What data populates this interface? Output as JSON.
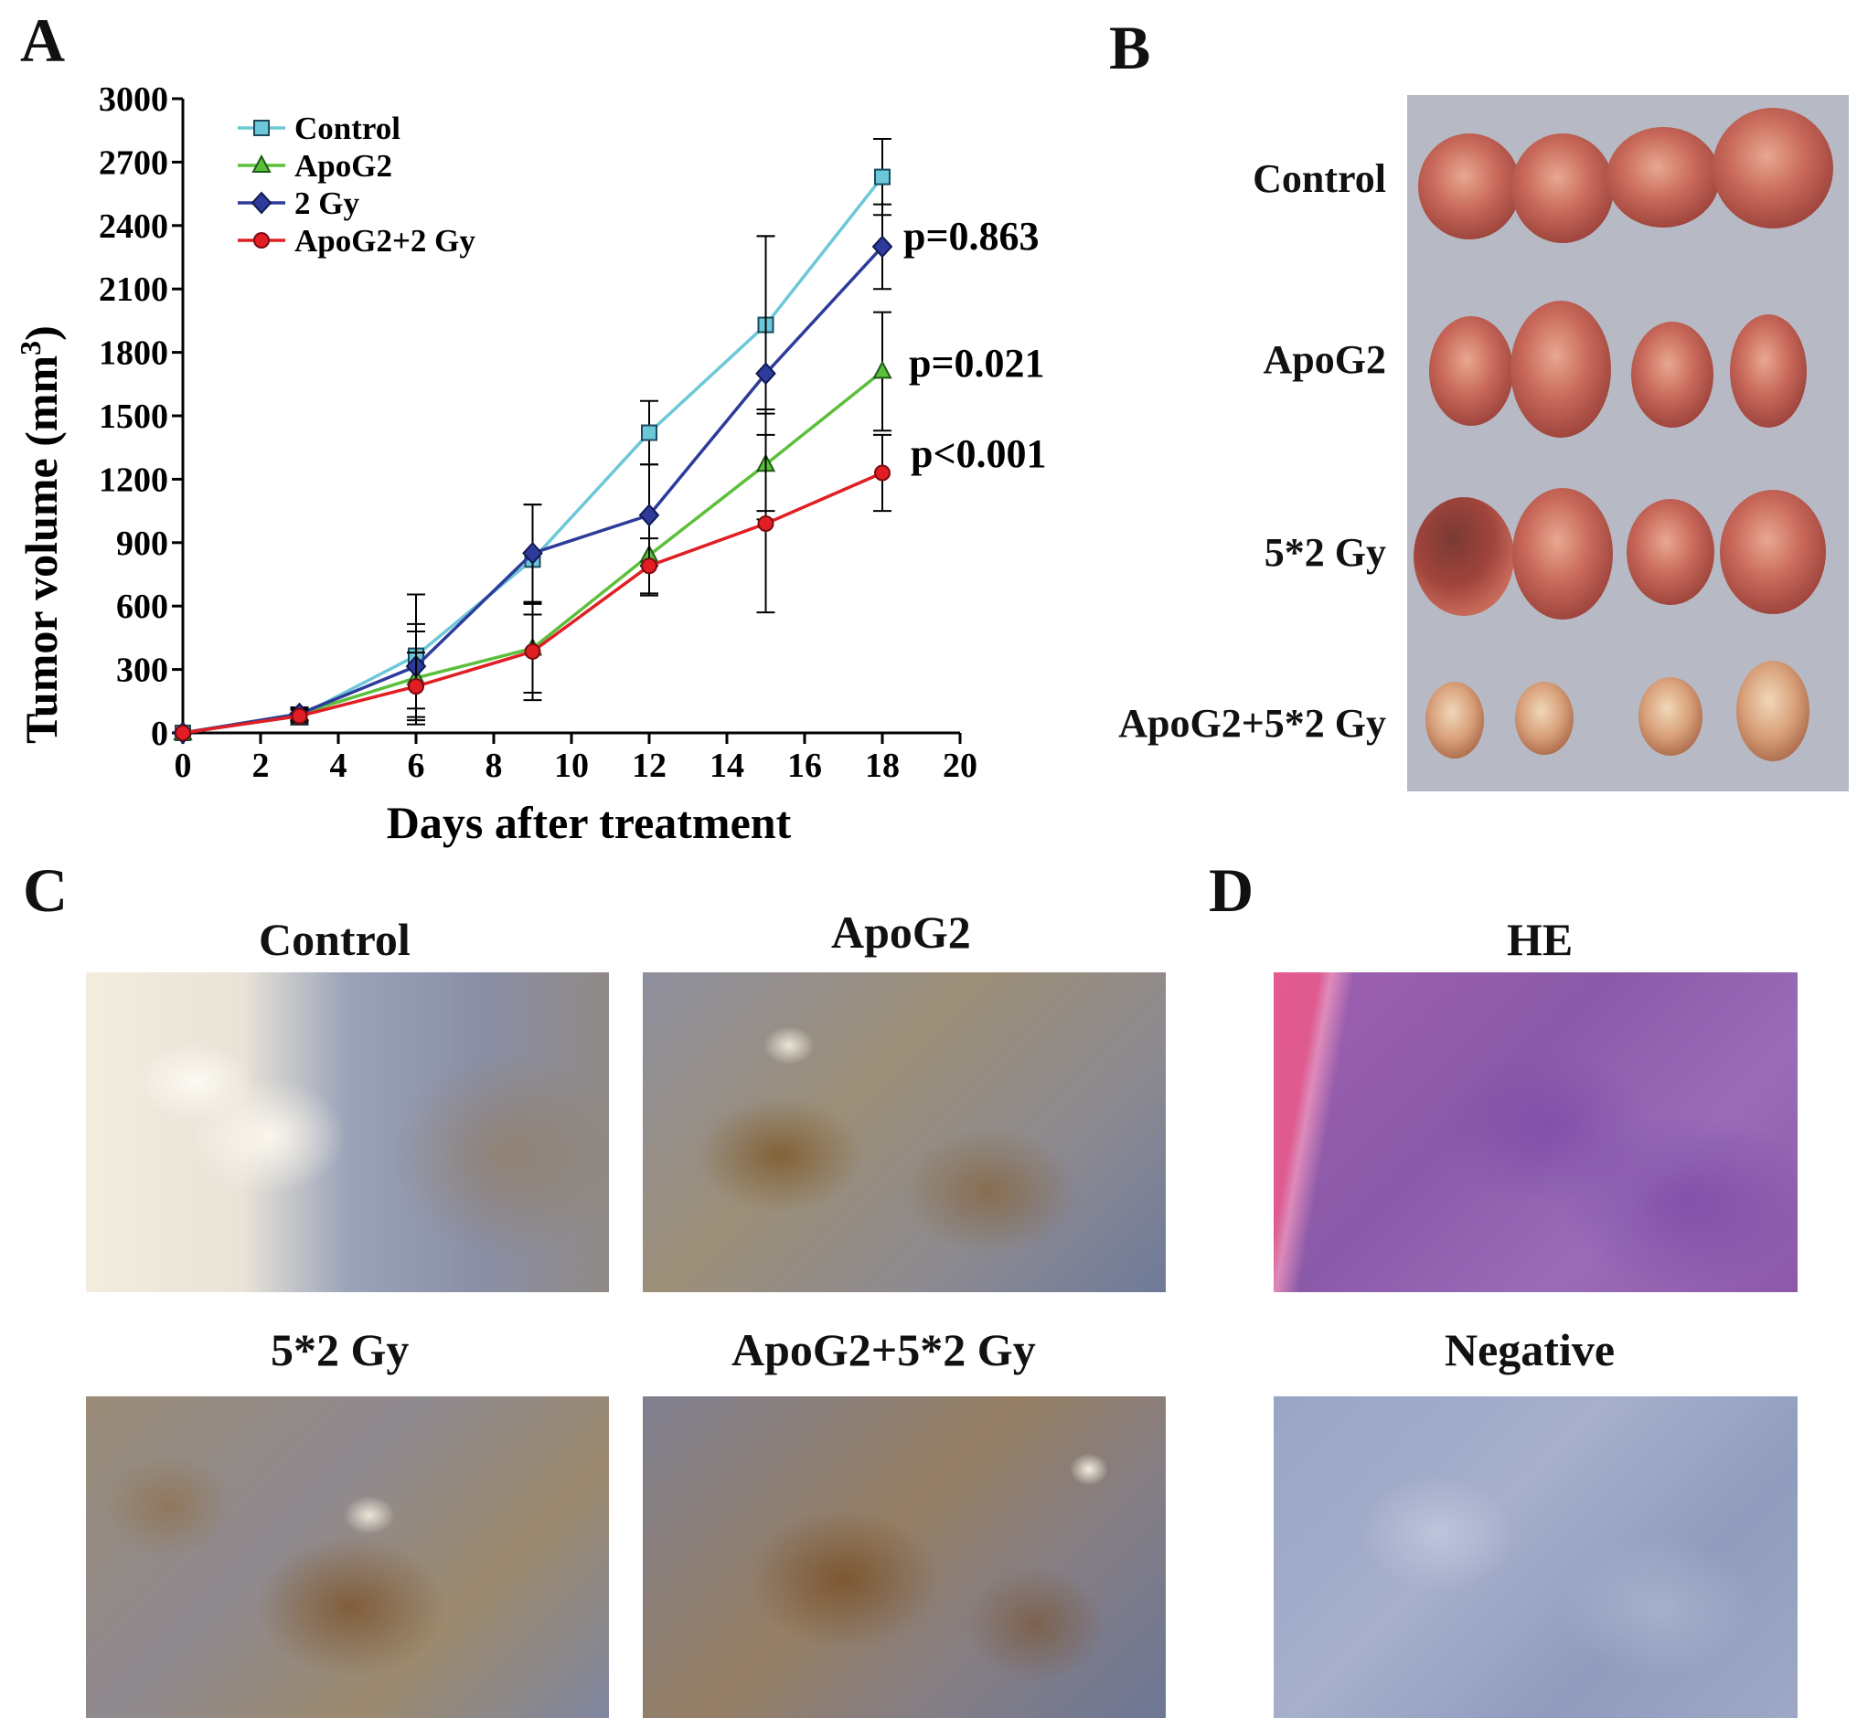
{
  "panels": {
    "a": {
      "letter": "A",
      "ylabel": "Tumor volume (mm",
      "ylabel_sup": "3",
      "ylabel_close": ")",
      "xlabel": "Days after treatment",
      "pvalues": [
        "p=0.863",
        "p=0.021",
        "p<0.001"
      ]
    },
    "b": {
      "letter": "B",
      "rows": [
        "Control",
        "ApoG2",
        "5*2 Gy",
        "ApoG2+5*2 Gy"
      ]
    },
    "c": {
      "letter": "C",
      "titles": [
        "Control",
        "ApoG2",
        "5*2 Gy",
        "ApoG2+5*2 Gy"
      ]
    },
    "d": {
      "letter": "D",
      "titles": [
        "HE",
        "Negative"
      ]
    }
  },
  "chart_data": {
    "type": "line",
    "title": "",
    "xlabel": "Days after treatment",
    "ylabel": "Tumor volume (mm3)",
    "xlim": [
      0,
      20
    ],
    "ylim": [
      0,
      3000
    ],
    "xticks": [
      0,
      2,
      4,
      6,
      8,
      10,
      12,
      14,
      16,
      18,
      20
    ],
    "yticks": [
      0,
      300,
      600,
      900,
      1200,
      1500,
      1800,
      2100,
      2400,
      2700,
      3000
    ],
    "x": [
      0,
      3,
      6,
      9,
      12,
      15,
      18
    ],
    "legend_position": "top-left",
    "series": [
      {
        "name": "Control",
        "color": "#6cc8d8",
        "marker": "square",
        "values": [
          0,
          80,
          365,
          820,
          1420,
          1930,
          2630
        ],
        "errors": [
          0,
          40,
          290,
          260,
          150,
          420,
          180
        ]
      },
      {
        "name": "ApoG2",
        "color": "#5cbf3c",
        "marker": "triangle",
        "values": [
          0,
          90,
          260,
          400,
          840,
          1270,
          1710
        ],
        "errors": [
          0,
          30,
          220,
          210,
          190,
          260,
          280
        ]
      },
      {
        "name": "2 Gy",
        "color": "#2e3b9a",
        "marker": "diamond",
        "values": [
          0,
          90,
          315,
          850,
          1030,
          1700,
          2300
        ],
        "errors": [
          0,
          30,
          200,
          230,
          240,
          650,
          200
        ]
      },
      {
        "name": "ApoG2+2 Gy",
        "color": "#e01e24",
        "marker": "circle",
        "values": [
          0,
          80,
          220,
          385,
          790,
          990,
          1230
        ],
        "errors": [
          0,
          30,
          160,
          230,
          130,
          420,
          180
        ]
      }
    ]
  }
}
